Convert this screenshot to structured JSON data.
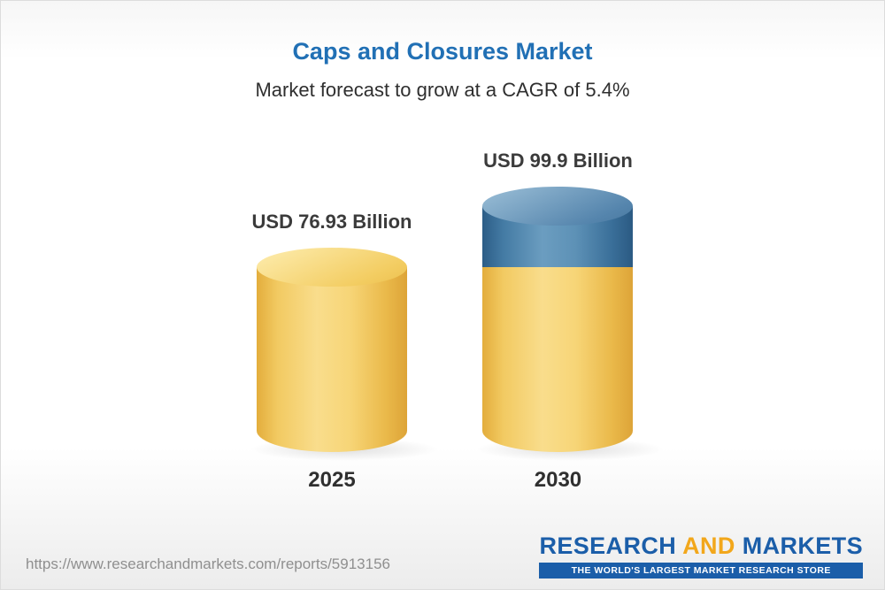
{
  "header": {
    "title": "Caps and Closures Market",
    "subtitle": "Market forecast to grow at a CAGR of 5.4%"
  },
  "chart_data": {
    "type": "bar",
    "categories": [
      "2025",
      "2030"
    ],
    "values": [
      76.93,
      99.9
    ],
    "value_labels": [
      "USD 76.93 Billion",
      "USD 99.9 Billion"
    ],
    "title": "Caps and Closures Market",
    "subtitle": "Market forecast to grow at a CAGR of 5.4%",
    "unit": "USD Billion",
    "ylim": [
      0,
      100
    ],
    "legend_position": "none",
    "grid": false,
    "layout_hint": "two 3D cylinders; 2030 cylinder has a blue top segment representing growth above the 2025 value",
    "colors": {
      "base_bar": "#F2C95C",
      "growth_segment": "#4A7DA6",
      "title_text": "#2170B5"
    }
  },
  "footer": {
    "url": "https://www.researchandmarkets.com/reports/5913156",
    "logo_research": "RESEARCH",
    "logo_and": "AND",
    "logo_markets": "MARKETS",
    "logo_tagline": "THE WORLD'S LARGEST MARKET RESEARCH STORE"
  }
}
